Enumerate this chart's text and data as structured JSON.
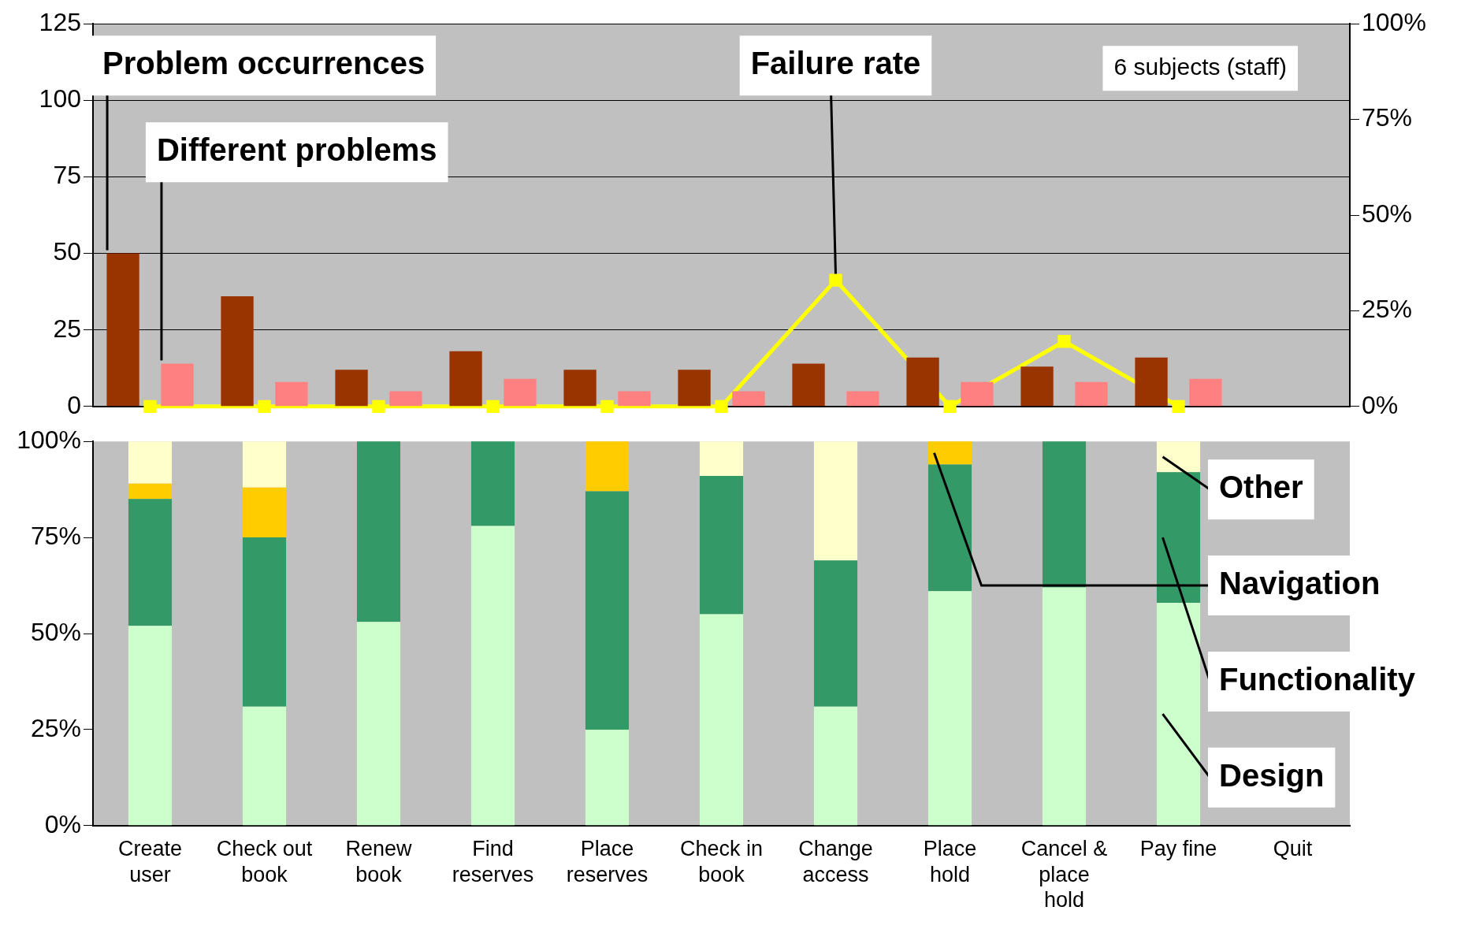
{
  "chart_data": [
    {
      "type": "bar",
      "categories": [
        null,
        null,
        null,
        null,
        null,
        null,
        null,
        null,
        null,
        null,
        null
      ],
      "series": [
        {
          "name": "Problem occurrences",
          "color": "#993300",
          "values": [
            50,
            36,
            12,
            18,
            12,
            12,
            14,
            16,
            13,
            16,
            null
          ]
        },
        {
          "name": "Different problems",
          "color": "#ff8080",
          "values": [
            14,
            8,
            5,
            9,
            5,
            5,
            5,
            8,
            8,
            9,
            null
          ]
        },
        {
          "name": "Failure rate",
          "type": "line",
          "axis": "y2",
          "color": "#ffff00",
          "values": [
            0,
            0,
            0,
            0,
            0,
            0,
            33,
            0,
            17,
            0,
            null
          ]
        }
      ],
      "ylim": [
        0,
        125
      ],
      "yticks": [
        0,
        25,
        50,
        75,
        100,
        125
      ],
      "y2lim": [
        0,
        100
      ],
      "y2ticks": [
        {
          "value": 0,
          "label": "0%"
        },
        {
          "value": 25,
          "label": "25%"
        },
        {
          "value": 50,
          "label": "50%"
        },
        {
          "value": 75,
          "label": "75%"
        },
        {
          "value": 100,
          "label": "100%"
        }
      ],
      "grid": "y",
      "marker": "square",
      "tick_labels": "y",
      "annotations": [
        "6 subjects (staff)"
      ]
    },
    {
      "type": "bar",
      "stacked": true,
      "categories": [
        "Create user",
        "Check out book",
        "Renew book",
        "Find reserves",
        "Place reserves",
        "Check in book",
        "Change access",
        "Place hold",
        "Cancel & place hold",
        "Pay fine",
        "Quit"
      ],
      "series": [
        {
          "name": "Design",
          "color": "#ccffcc",
          "values": [
            52,
            31,
            53,
            78,
            25,
            55,
            31,
            61,
            62,
            58,
            null
          ]
        },
        {
          "name": "Functionality",
          "color": "#339966",
          "values": [
            33,
            44,
            47,
            22,
            62,
            36,
            38,
            33,
            38,
            34,
            null
          ]
        },
        {
          "name": "Navigation",
          "color": "#ffcc00",
          "values": [
            4,
            13,
            0,
            0,
            13,
            0,
            0,
            6,
            0,
            0,
            null
          ]
        },
        {
          "name": "Other",
          "color": "#ffffcc",
          "values": [
            11,
            12,
            0,
            0,
            0,
            9,
            31,
            0,
            0,
            8,
            null
          ]
        }
      ],
      "ylim": [
        0,
        100
      ],
      "yticks": [
        {
          "value": 0,
          "label": "0%"
        },
        {
          "value": 25,
          "label": "25%"
        },
        {
          "value": 50,
          "label": "50%"
        },
        {
          "value": 75,
          "label": "75%"
        },
        {
          "value": 100,
          "label": "100%"
        }
      ],
      "legend": "right"
    }
  ]
}
